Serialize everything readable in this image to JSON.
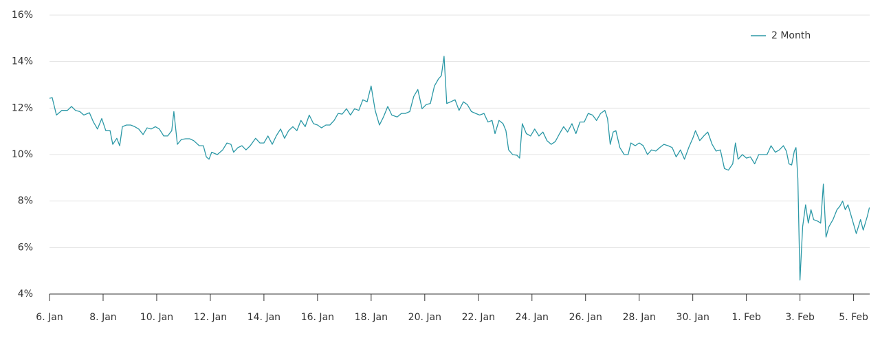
{
  "chart_data": {
    "type": "line",
    "x": [
      0,
      0.1,
      0.26,
      0.46,
      0.67,
      0.82,
      0.97,
      1.13,
      1.28,
      1.49,
      1.64,
      1.79,
      1.95,
      2.1,
      2.26,
      2.36,
      2.51,
      2.62,
      2.72,
      2.87,
      3.03,
      3.18,
      3.33,
      3.49,
      3.64,
      3.79,
      3.95,
      4.1,
      4.26,
      4.41,
      4.56,
      4.64,
      4.77,
      4.92,
      5.08,
      5.23,
      5.38,
      5.59,
      5.74,
      5.85,
      5.95,
      6.05,
      6.26,
      6.46,
      6.62,
      6.77,
      6.87,
      7.03,
      7.18,
      7.33,
      7.49,
      7.69,
      7.85,
      8.0,
      8.15,
      8.31,
      8.46,
      8.62,
      8.77,
      8.92,
      9.08,
      9.23,
      9.38,
      9.54,
      9.69,
      9.85,
      10.0,
      10.15,
      10.31,
      10.46,
      10.62,
      10.77,
      10.92,
      11.08,
      11.23,
      11.38,
      11.54,
      11.69,
      11.85,
      12.0,
      12.15,
      12.31,
      12.46,
      12.62,
      12.77,
      12.97,
      13.13,
      13.28,
      13.44,
      13.59,
      13.74,
      13.9,
      14.05,
      14.21,
      14.36,
      14.51,
      14.62,
      14.72,
      14.82,
      14.97,
      15.13,
      15.28,
      15.44,
      15.59,
      15.74,
      15.9,
      16.05,
      16.21,
      16.36,
      16.51,
      16.62,
      16.77,
      16.92,
      17.03,
      17.13,
      17.28,
      17.44,
      17.54,
      17.64,
      17.79,
      17.95,
      18.1,
      18.26,
      18.41,
      18.56,
      18.72,
      18.87,
      19.03,
      19.18,
      19.33,
      19.49,
      19.64,
      19.79,
      19.95,
      20.1,
      20.26,
      20.41,
      20.56,
      20.72,
      20.82,
      20.92,
      21.03,
      21.13,
      21.28,
      21.44,
      21.59,
      21.69,
      21.85,
      22.0,
      22.15,
      22.31,
      22.46,
      22.62,
      22.77,
      22.92,
      23.08,
      23.23,
      23.38,
      23.54,
      23.69,
      23.85,
      24.0,
      24.1,
      24.26,
      24.41,
      24.56,
      24.72,
      24.87,
      25.03,
      25.18,
      25.33,
      25.49,
      25.59,
      25.69,
      25.85,
      26.0,
      26.15,
      26.31,
      26.46,
      26.62,
      26.77,
      26.92,
      27.08,
      27.23,
      27.38,
      27.49,
      27.59,
      27.69,
      27.79,
      27.85,
      27.92,
      28.0,
      28.1,
      28.21,
      28.31,
      28.41,
      28.51,
      28.67,
      28.77,
      28.87,
      28.97,
      29.08,
      29.23,
      29.38,
      29.49,
      29.59,
      29.69,
      29.79,
      29.95,
      30.1,
      30.26,
      30.36,
      30.51,
      30.59
    ],
    "series": [
      {
        "name": "2 Month",
        "color": "#2b98a6",
        "values": [
          12.42,
          12.45,
          11.7,
          11.9,
          11.9,
          12.07,
          11.9,
          11.85,
          11.7,
          11.8,
          11.4,
          11.1,
          11.55,
          11.03,
          11.03,
          10.44,
          10.7,
          10.38,
          11.2,
          11.27,
          11.27,
          11.2,
          11.1,
          10.86,
          11.15,
          11.1,
          11.2,
          11.1,
          10.8,
          10.8,
          11.03,
          11.85,
          10.44,
          10.65,
          10.68,
          10.68,
          10.6,
          10.38,
          10.38,
          9.9,
          9.8,
          10.1,
          10.0,
          10.2,
          10.5,
          10.44,
          10.1,
          10.3,
          10.38,
          10.2,
          10.38,
          10.7,
          10.5,
          10.5,
          10.8,
          10.44,
          10.8,
          11.1,
          10.7,
          11.03,
          11.2,
          11.03,
          11.47,
          11.2,
          11.7,
          11.33,
          11.27,
          11.15,
          11.27,
          11.27,
          11.47,
          11.77,
          11.74,
          11.97,
          11.7,
          11.97,
          11.9,
          12.36,
          12.27,
          12.95,
          11.9,
          11.27,
          11.62,
          12.07,
          11.7,
          11.62,
          11.77,
          11.77,
          11.85,
          12.5,
          12.8,
          11.97,
          12.15,
          12.2,
          12.95,
          13.25,
          13.4,
          14.23,
          12.2,
          12.27,
          12.36,
          11.9,
          12.27,
          12.15,
          11.85,
          11.77,
          11.7,
          11.77,
          11.4,
          11.47,
          10.9,
          11.47,
          11.33,
          11.03,
          10.2,
          10.0,
          9.97,
          9.85,
          11.33,
          10.9,
          10.8,
          11.1,
          10.8,
          10.97,
          10.6,
          10.44,
          10.56,
          10.9,
          11.2,
          10.97,
          11.33,
          10.9,
          11.4,
          11.4,
          11.77,
          11.7,
          11.47,
          11.77,
          11.9,
          11.55,
          10.44,
          10.97,
          11.03,
          10.3,
          10.0,
          10.0,
          10.5,
          10.38,
          10.5,
          10.38,
          10.0,
          10.2,
          10.15,
          10.3,
          10.44,
          10.38,
          10.3,
          9.9,
          10.2,
          9.8,
          10.3,
          10.7,
          11.03,
          10.6,
          10.8,
          10.97,
          10.44,
          10.15,
          10.2,
          9.4,
          9.33,
          9.6,
          10.5,
          9.8,
          10.0,
          9.85,
          9.9,
          9.6,
          10.0,
          10.0,
          10.0,
          10.38,
          10.1,
          10.2,
          10.38,
          10.15,
          9.6,
          9.55,
          10.15,
          10.3,
          8.97,
          4.6,
          6.9,
          7.84,
          7.05,
          7.63,
          7.2,
          7.13,
          7.05,
          8.73,
          6.45,
          6.9,
          7.2,
          7.63,
          7.78,
          8.0,
          7.63,
          7.84,
          7.2,
          6.6,
          7.2,
          6.75,
          7.34,
          7.72
        ]
      }
    ],
    "xlim": [
      0,
      30.6
    ],
    "xticks": [
      {
        "value": 0,
        "label": "6. Jan"
      },
      {
        "value": 2,
        "label": "8. Jan"
      },
      {
        "value": 4,
        "label": "10. Jan"
      },
      {
        "value": 6,
        "label": "12. Jan"
      },
      {
        "value": 8,
        "label": "14. Jan"
      },
      {
        "value": 10,
        "label": "16. Jan"
      },
      {
        "value": 12,
        "label": "18. Jan"
      },
      {
        "value": 14,
        "label": "20. Jan"
      },
      {
        "value": 16,
        "label": "22. Jan"
      },
      {
        "value": 18,
        "label": "24. Jan"
      },
      {
        "value": 20,
        "label": "26. Jan"
      },
      {
        "value": 22,
        "label": "28. Jan"
      },
      {
        "value": 24,
        "label": "30. Jan"
      },
      {
        "value": 26,
        "label": "1. Feb"
      },
      {
        "value": 28,
        "label": "3. Feb"
      },
      {
        "value": 30,
        "label": "5. Feb"
      }
    ],
    "ylim": [
      4,
      16
    ],
    "yticks": [
      {
        "value": 4,
        "label": "4%"
      },
      {
        "value": 6,
        "label": "6%"
      },
      {
        "value": 8,
        "label": "8%"
      },
      {
        "value": 10,
        "label": "10%"
      },
      {
        "value": 12,
        "label": "12%"
      },
      {
        "value": 14,
        "label": "14%"
      },
      {
        "value": 16,
        "label": "16%"
      }
    ],
    "grid": true,
    "legend": "top-right"
  }
}
